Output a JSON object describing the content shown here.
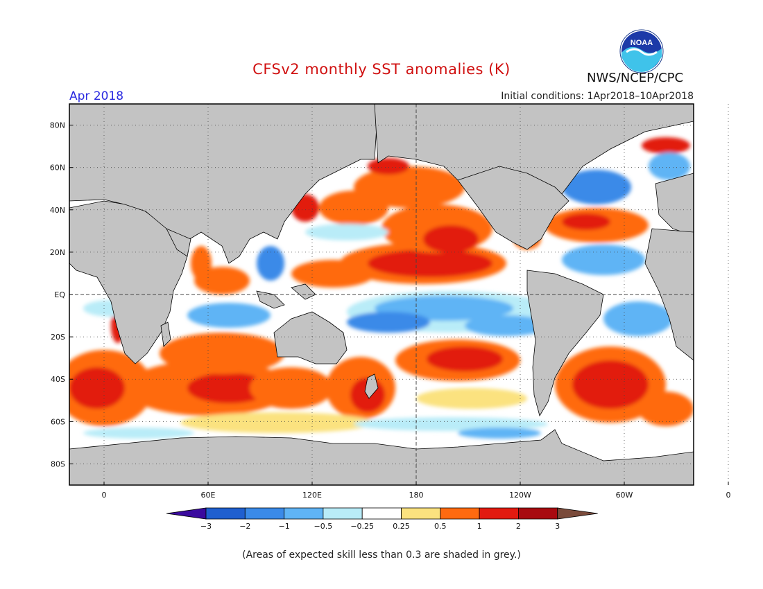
{
  "header": {
    "title": "CFSv2 monthly SST anomalies (K)",
    "agency": "NWS/NCEP/CPC",
    "forecast_month": "Apr 2018",
    "initial_conditions": "Initial conditions: 1Apr2018–10Apr2018"
  },
  "map": {
    "lat_labels": [
      "80N",
      "60N",
      "40N",
      "20N",
      "EQ",
      "20S",
      "40S",
      "60S",
      "80S"
    ],
    "lon_labels": [
      "0",
      "60E",
      "120E",
      "180",
      "120W",
      "60W",
      "0"
    ],
    "colors": {
      "land": "#c3c3c3",
      "low_skill": "#c3c3c3",
      "coastline": "#000000",
      "grid": "#555555"
    }
  },
  "colorbar": {
    "labels": [
      "−3",
      "−2",
      "−1",
      "−0.5",
      "−0.25",
      "0.25",
      "0.5",
      "1",
      "2",
      "3"
    ],
    "colors": [
      "#3a0a9e",
      "#1f5fcf",
      "#3a8ae8",
      "#5fb4f5",
      "#b9ecf8",
      "#ffffff",
      "#fbe27f",
      "#ff6a10",
      "#e21a10",
      "#a80a10",
      "#7a4a3a"
    ]
  },
  "footnote": "(Areas of expected skill less than 0.3 are shaded in grey.)",
  "logo": {
    "text": "NOAA",
    "icon": "noaa-logo-icon"
  }
}
